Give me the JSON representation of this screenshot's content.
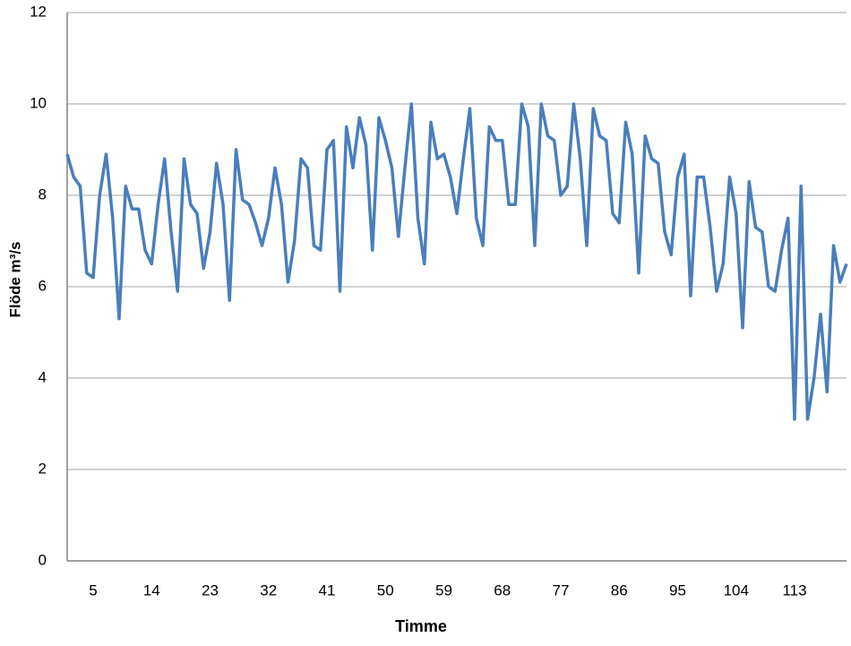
{
  "chart_data": {
    "type": "line",
    "xlabel": "Timme",
    "ylabel": "Flöde m³/s",
    "categories": [
      null,
      null,
      null,
      null,
      5,
      null,
      null,
      null,
      null,
      null,
      null,
      null,
      null,
      14,
      null,
      null,
      null,
      null,
      null,
      null,
      null,
      null,
      23,
      null,
      null,
      null,
      null,
      null,
      null,
      null,
      null,
      32,
      null,
      null,
      null,
      null,
      null,
      null,
      null,
      null,
      41,
      null,
      null,
      null,
      null,
      null,
      null,
      null,
      null,
      50,
      null,
      null,
      null,
      null,
      null,
      null,
      null,
      null,
      59,
      null,
      null,
      null,
      null,
      null,
      null,
      null,
      null,
      68,
      null,
      null,
      null,
      null,
      null,
      null,
      null,
      null,
      77,
      null,
      null,
      null,
      null,
      null,
      null,
      null,
      null,
      86,
      null,
      null,
      null,
      null,
      null,
      null,
      null,
      null,
      95,
      null,
      null,
      null,
      null,
      null,
      null,
      null,
      null,
      104,
      null,
      null,
      null,
      null,
      null,
      null,
      null,
      null,
      113,
      null,
      null,
      null,
      null,
      null,
      null,
      null,
      null
    ],
    "series": [
      {
        "color": "#4a7ebb",
        "values": [
          8.9,
          8.4,
          8.2,
          6.3,
          6.2,
          8.0,
          8.9,
          7.5,
          5.3,
          8.2,
          7.7,
          7.7,
          6.8,
          6.5,
          7.8,
          8.8,
          7.2,
          5.9,
          8.8,
          7.8,
          7.6,
          6.4,
          7.2,
          8.7,
          7.8,
          5.7,
          9.0,
          7.9,
          7.8,
          7.4,
          6.9,
          7.5,
          8.6,
          7.8,
          6.1,
          7.0,
          8.8,
          8.6,
          6.9,
          6.8,
          9.0,
          9.2,
          5.9,
          9.5,
          8.6,
          9.7,
          9.1,
          6.8,
          9.7,
          9.2,
          8.6,
          7.1,
          8.6,
          10.0,
          7.5,
          6.5,
          9.6,
          8.8,
          8.9,
          8.4,
          7.6,
          8.8,
          9.9,
          7.5,
          6.9,
          9.5,
          9.2,
          9.2,
          7.8,
          7.8,
          10.0,
          9.5,
          6.9,
          10.0,
          9.3,
          9.2,
          8.0,
          8.2,
          10.0,
          8.8,
          6.9,
          9.9,
          9.3,
          9.2,
          7.6,
          7.4,
          9.6,
          8.9,
          6.3,
          9.3,
          8.8,
          8.7,
          7.2,
          6.7,
          8.4,
          8.9,
          5.8,
          8.4,
          8.4,
          7.3,
          5.9,
          6.5,
          8.4,
          7.6,
          5.1,
          8.3,
          7.3,
          7.2,
          6.0,
          5.9,
          6.8,
          7.5,
          3.1,
          8.2,
          3.1,
          4.0,
          5.4,
          3.7,
          6.9,
          6.1,
          6.5
        ]
      }
    ],
    "ylim": [
      0,
      12
    ],
    "yticks": [
      0,
      2,
      4,
      6,
      8,
      10,
      12
    ],
    "grid": true
  }
}
